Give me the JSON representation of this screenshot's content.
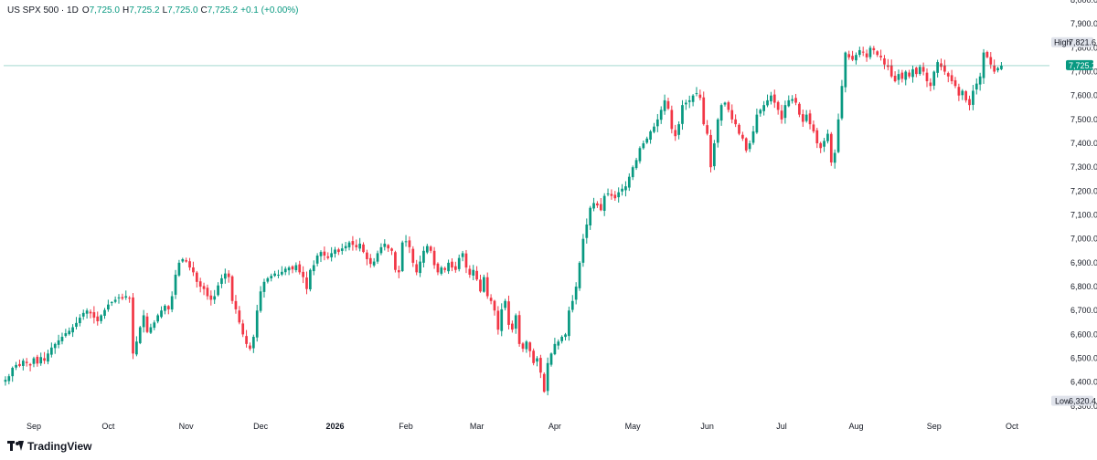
{
  "legend": {
    "symbol": "US SPX 500 · 1D",
    "o_label": "O",
    "o_value": "7,725.0",
    "h_label": "H",
    "h_value": "7,725.2",
    "l_label": "L",
    "l_value": "7,725.0",
    "c_label": "C",
    "c_value": "7,725.2",
    "change": "+0.1 (+0.00%)"
  },
  "high_tag": {
    "label": "High",
    "value": "7,821.6"
  },
  "low_tag": {
    "label": "Low",
    "value": "6,320.4"
  },
  "last_price": {
    "label": "7,725.2",
    "value": 7725.2
  },
  "brand": {
    "name": "TradingView",
    "logo_icon": "tradingview-logo-icon"
  },
  "colors": {
    "up": "#089981",
    "down": "#f23645",
    "wick": "#9598a1",
    "last_line": "#089981"
  },
  "chart_data": {
    "type": "candlestick",
    "title": "",
    "ylim": [
      6250,
      8000
    ],
    "y_ticks": [
      6300,
      6400,
      6500,
      6600,
      6700,
      6800,
      6900,
      7000,
      7100,
      7200,
      7300,
      7400,
      7500,
      7600,
      7700,
      7800,
      7900,
      8000
    ],
    "y_tick_labels": [
      "6,300.0",
      "6,400.0",
      "6,500.0",
      "6,600.0",
      "6,700.0",
      "6,800.0",
      "6,900.0",
      "7,000.0",
      "7,100.0",
      "7,200.0",
      "7,300.0",
      "7,400.0",
      "7,500.0",
      "7,600.0",
      "7,700.0",
      "7,800.0",
      "7,900.0",
      "8,000.0"
    ],
    "x_labels": [
      {
        "label": "Sep",
        "index": 8,
        "bold": false
      },
      {
        "label": "Oct",
        "index": 29,
        "bold": false
      },
      {
        "label": "Nov",
        "index": 51,
        "bold": false
      },
      {
        "label": "Dec",
        "index": 72,
        "bold": false
      },
      {
        "label": "2026",
        "index": 93,
        "bold": true
      },
      {
        "label": "Feb",
        "index": 113,
        "bold": false
      },
      {
        "label": "Mar",
        "index": 133,
        "bold": false
      },
      {
        "label": "Apr",
        "index": 155,
        "bold": false
      },
      {
        "label": "May",
        "index": 177,
        "bold": false
      },
      {
        "label": "Jun",
        "index": 198,
        "bold": false
      },
      {
        "label": "Jul",
        "index": 219,
        "bold": false
      },
      {
        "label": "Aug",
        "index": 240,
        "bold": false
      },
      {
        "label": "Sep",
        "index": 262,
        "bold": false
      },
      {
        "label": "Oct",
        "index": 284,
        "bold": false
      }
    ],
    "x_count": 293,
    "high": 7821.6,
    "low": 6320.4,
    "closes": [
      6410,
      6425,
      6460,
      6472,
      6468,
      6490,
      6480,
      6470,
      6500,
      6478,
      6505,
      6490,
      6520,
      6545,
      6560,
      6575,
      6590,
      6605,
      6615,
      6630,
      6648,
      6670,
      6690,
      6700,
      6688,
      6670,
      6655,
      6680,
      6702,
      6725,
      6735,
      6745,
      6755,
      6750,
      6760,
      6752,
      6520,
      6570,
      6630,
      6680,
      6610,
      6630,
      6650,
      6680,
      6700,
      6720,
      6705,
      6760,
      6850,
      6900,
      6915,
      6905,
      6880,
      6860,
      6820,
      6800,
      6790,
      6760,
      6745,
      6760,
      6805,
      6835,
      6855,
      6840,
      6740,
      6705,
      6650,
      6600,
      6560,
      6540,
      6590,
      6700,
      6780,
      6820,
      6835,
      6845,
      6855,
      6850,
      6862,
      6875,
      6880,
      6872,
      6890,
      6860,
      6840,
      6790,
      6870,
      6890,
      6930,
      6945,
      6930,
      6920,
      6940,
      6955,
      6945,
      6960,
      6970,
      6985,
      6975,
      6965,
      6980,
      6945,
      6915,
      6895,
      6905,
      6940,
      6965,
      6980,
      6960,
      6950,
      6870,
      6860,
      6985,
      6990,
      6965,
      6900,
      6860,
      6905,
      6950,
      6970,
      6950,
      6890,
      6860,
      6880,
      6870,
      6900,
      6880,
      6870,
      6920,
      6940,
      6880,
      6850,
      6870,
      6830,
      6780,
      6840,
      6760,
      6740,
      6700,
      6620,
      6705,
      6740,
      6640,
      6620,
      6680,
      6560,
      6540,
      6570,
      6530,
      6480,
      6500,
      6440,
      6360,
      6480,
      6520,
      6560,
      6570,
      6590,
      6600,
      6700,
      6740,
      6800,
      6900,
      7000,
      7060,
      7130,
      7150,
      7140,
      7120,
      7180,
      7190,
      7180,
      7170,
      7195,
      7210,
      7220,
      7260,
      7300,
      7330,
      7380,
      7400,
      7420,
      7450,
      7470,
      7500,
      7540,
      7580,
      7545,
      7460,
      7430,
      7480,
      7560,
      7570,
      7580,
      7600,
      7610,
      7590,
      7480,
      7440,
      7300,
      7400,
      7500,
      7560,
      7570,
      7540,
      7500,
      7480,
      7440,
      7420,
      7370,
      7400,
      7450,
      7520,
      7540,
      7560,
      7580,
      7600,
      7570,
      7540,
      7500,
      7560,
      7580,
      7585,
      7570,
      7520,
      7490,
      7520,
      7480,
      7450,
      7400,
      7380,
      7410,
      7440,
      7320,
      7360,
      7500,
      7640,
      7780,
      7760,
      7750,
      7770,
      7790,
      7780,
      7760,
      7800,
      7790,
      7770,
      7760,
      7730,
      7720,
      7680,
      7660,
      7690,
      7670,
      7700,
      7680,
      7710,
      7690,
      7720,
      7700,
      7660,
      7640,
      7700,
      7740,
      7720,
      7700,
      7680,
      7660,
      7640,
      7600,
      7620,
      7580,
      7560,
      7620,
      7650,
      7680,
      7780,
      7760,
      7730,
      7700,
      7715,
      7725
    ]
  }
}
